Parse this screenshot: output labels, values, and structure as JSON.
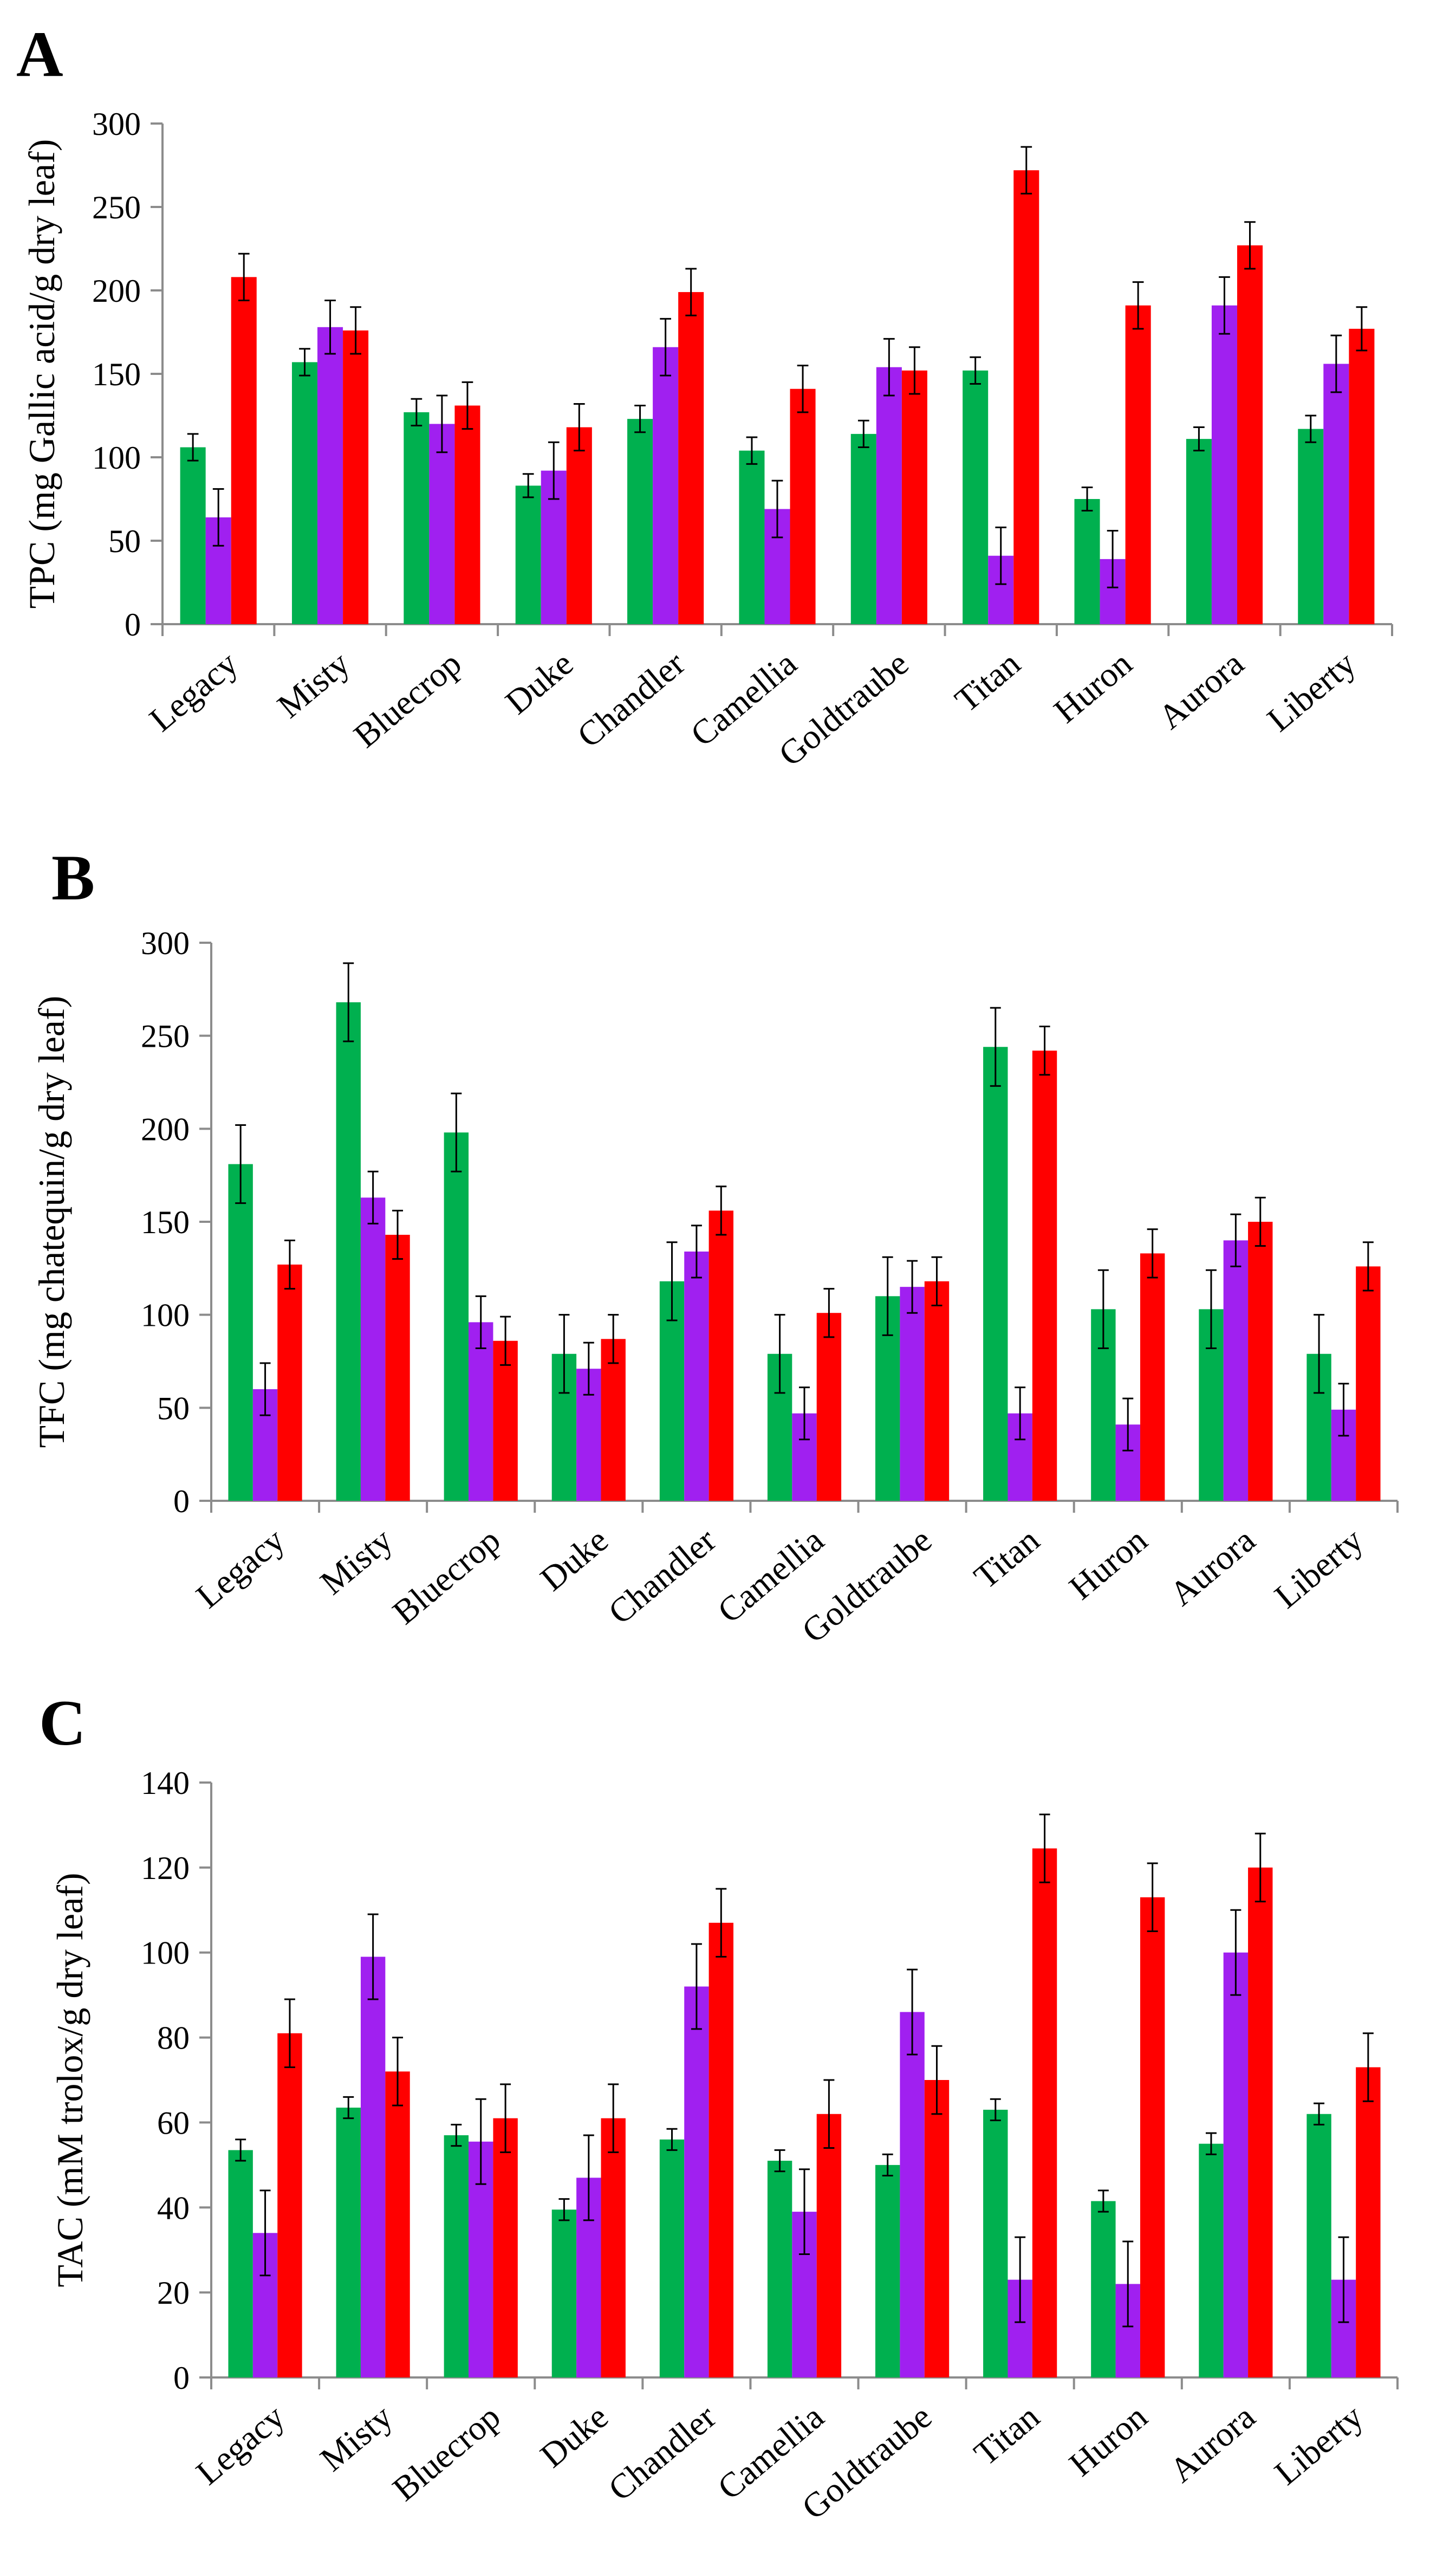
{
  "colors": {
    "green": "#00b04f",
    "purple": "#a020f0",
    "red": "#ff0000",
    "axis": "#8c8c8c",
    "error": "#000000"
  },
  "chart_data": [
    {
      "type": "bar",
      "panel": "A",
      "ylabel": "TPC (mg  Gallic acid/g dry leaf)",
      "ylim": [
        0,
        300
      ],
      "yticks": [
        0,
        50,
        100,
        150,
        200,
        250,
        300
      ],
      "categories": [
        "Legacy",
        "Misty",
        "Bluecrop",
        "Duke",
        "Chandler",
        "Camellia",
        "Goldtraube",
        "Titan",
        "Huron",
        "Aurora",
        "Liberty"
      ],
      "series": [
        {
          "name": "green",
          "color": "#00b04f",
          "values": [
            106,
            157,
            127,
            83,
            123,
            104,
            114,
            152,
            75,
            111,
            117
          ],
          "errors": [
            8,
            8,
            8,
            7,
            8,
            8,
            8,
            8,
            7,
            7,
            8
          ]
        },
        {
          "name": "purple",
          "color": "#a020f0",
          "values": [
            64,
            178,
            120,
            92,
            166,
            69,
            154,
            41,
            39,
            191,
            156
          ],
          "errors": [
            17,
            16,
            17,
            17,
            17,
            17,
            17,
            17,
            17,
            17,
            17
          ]
        },
        {
          "name": "red",
          "color": "#ff0000",
          "values": [
            208,
            176,
            131,
            118,
            199,
            141,
            152,
            272,
            191,
            227,
            177
          ],
          "errors": [
            14,
            14,
            14,
            14,
            14,
            14,
            14,
            14,
            14,
            14,
            13
          ]
        }
      ]
    },
    {
      "type": "bar",
      "panel": "B",
      "ylabel": "TFC (mg chatequin/g dry leaf)",
      "ylim": [
        0,
        300
      ],
      "yticks": [
        0,
        50,
        100,
        150,
        200,
        250,
        300
      ],
      "categories": [
        "Legacy",
        "Misty",
        "Bluecrop",
        "Duke",
        "Chandler",
        "Camellia",
        "Goldtraube",
        "Titan",
        "Huron",
        "Aurora",
        "Liberty"
      ],
      "series": [
        {
          "name": "green",
          "color": "#00b04f",
          "values": [
            181,
            268,
            198,
            79,
            118,
            79,
            110,
            244,
            103,
            103,
            79
          ],
          "errors": [
            21,
            21,
            21,
            21,
            21,
            21,
            21,
            21,
            21,
            21,
            21
          ]
        },
        {
          "name": "purple",
          "color": "#a020f0",
          "values": [
            60,
            163,
            96,
            71,
            134,
            47,
            115,
            47,
            41,
            140,
            49
          ],
          "errors": [
            14,
            14,
            14,
            14,
            14,
            14,
            14,
            14,
            14,
            14,
            14
          ]
        },
        {
          "name": "red",
          "color": "#ff0000",
          "values": [
            127,
            143,
            86,
            87,
            156,
            101,
            118,
            242,
            133,
            150,
            126
          ],
          "errors": [
            13,
            13,
            13,
            13,
            13,
            13,
            13,
            13,
            13,
            13,
            13
          ]
        }
      ]
    },
    {
      "type": "bar",
      "panel": "C",
      "ylabel": "TAC (mM trolox/g dry leaf)",
      "ylim": [
        0,
        140
      ],
      "yticks": [
        0,
        20,
        40,
        60,
        80,
        100,
        120,
        140
      ],
      "categories": [
        "Legacy",
        "Misty",
        "Bluecrop",
        "Duke",
        "Chandler",
        "Camellia",
        "Goldtraube",
        "Titan",
        "Huron",
        "Aurora",
        "Liberty"
      ],
      "series": [
        {
          "name": "green",
          "color": "#00b04f",
          "values": [
            53.5,
            63.5,
            57,
            39.5,
            56,
            51,
            50,
            63,
            41.5,
            55,
            62
          ],
          "errors": [
            2.5,
            2.5,
            2.5,
            2.5,
            2.5,
            2.5,
            2.5,
            2.5,
            2.5,
            2.5,
            2.5
          ]
        },
        {
          "name": "purple",
          "color": "#a020f0",
          "values": [
            34,
            99,
            55.5,
            47,
            92,
            39,
            86,
            23,
            22,
            100,
            23
          ],
          "errors": [
            10,
            10,
            10,
            10,
            10,
            10,
            10,
            10,
            10,
            10,
            10
          ]
        },
        {
          "name": "red",
          "color": "#ff0000",
          "values": [
            81,
            72,
            61,
            61,
            107,
            62,
            70,
            124.5,
            113,
            120,
            73
          ],
          "errors": [
            8,
            8,
            8,
            8,
            8,
            8,
            8,
            8,
            8,
            8,
            8
          ]
        }
      ]
    }
  ]
}
